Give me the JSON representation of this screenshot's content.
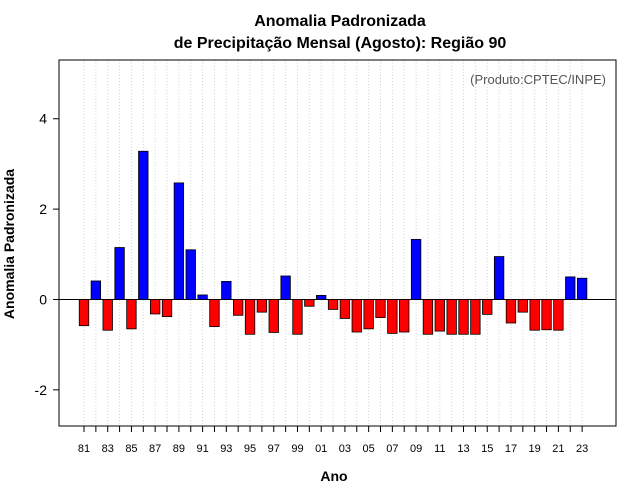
{
  "chart_data": {
    "type": "bar",
    "title": "Anomalia Padronizada",
    "subtitle": "de Precipitação Mensal (Agosto): Região 90",
    "xlabel": "Ano",
    "ylabel": "Anomalia Padronizada",
    "annotation": "(Produto:CPTEC/INPE)",
    "ylim": [
      -2.8,
      5.3
    ],
    "yticks": [
      -2,
      0,
      2,
      4
    ],
    "grid": "vertical dotted",
    "positive_color": "#0000ff",
    "negative_color": "#ff0000",
    "x": [
      "1981",
      "1982",
      "1983",
      "1984",
      "1985",
      "1986",
      "1987",
      "1988",
      "1989",
      "1990",
      "1991",
      "1992",
      "1993",
      "1994",
      "1995",
      "1996",
      "1997",
      "1998",
      "1999",
      "2000",
      "2001",
      "2002",
      "2003",
      "2004",
      "2005",
      "2006",
      "2007",
      "2008",
      "2009",
      "2010",
      "2011",
      "2012",
      "2013",
      "2014",
      "2015",
      "2016",
      "2017",
      "2018",
      "2019",
      "2020",
      "2021",
      "2022",
      "2023"
    ],
    "tick_labels": [
      "81",
      "",
      "83",
      "",
      "85",
      "",
      "87",
      "",
      "89",
      "",
      "91",
      "",
      "93",
      "",
      "95",
      "",
      "97",
      "",
      "99",
      "",
      "01",
      "",
      "03",
      "",
      "05",
      "",
      "07",
      "",
      "09",
      "",
      "11",
      "",
      "13",
      "",
      "15",
      "",
      "17",
      "",
      "19",
      "",
      "21",
      "",
      "23"
    ],
    "values": [
      -0.58,
      0.41,
      -0.68,
      1.15,
      -0.65,
      3.28,
      -0.32,
      -0.38,
      2.58,
      1.1,
      0.1,
      -0.6,
      0.4,
      -0.35,
      -0.77,
      -0.28,
      -0.73,
      0.52,
      -0.77,
      -0.15,
      0.09,
      -0.22,
      -0.42,
      -0.72,
      -0.65,
      -0.4,
      -0.75,
      -0.72,
      1.33,
      -0.77,
      -0.7,
      -0.77,
      -0.77,
      -0.77,
      -0.33,
      0.95,
      -0.52,
      -0.28,
      -0.68,
      -0.67,
      -0.68,
      0.5,
      0.47
    ]
  }
}
